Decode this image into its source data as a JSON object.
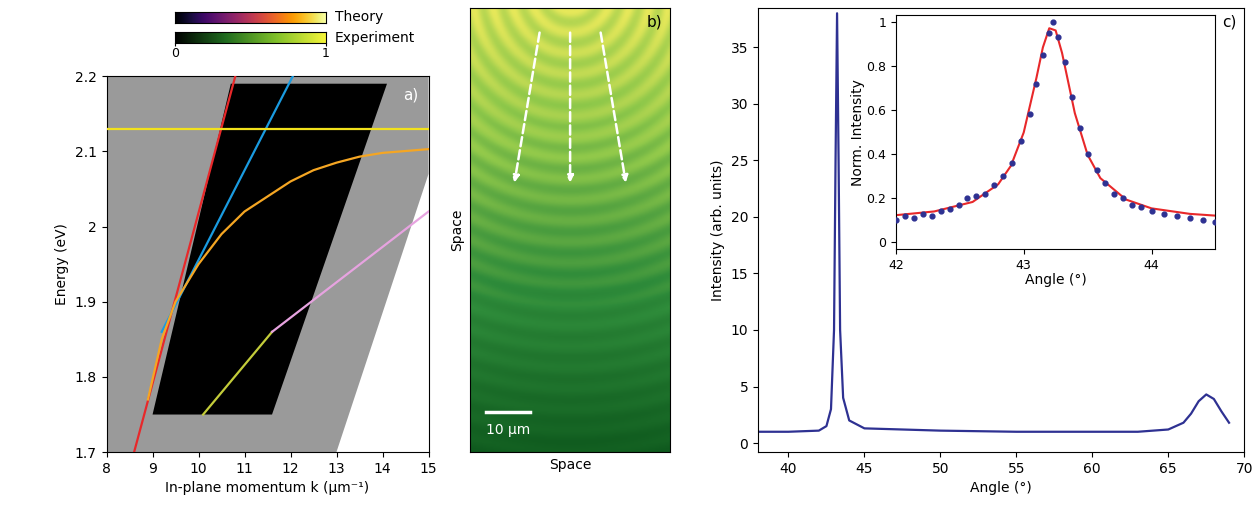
{
  "chart_data": [
    {
      "type": "line",
      "panel_label": "a)",
      "x_label": "In-plane momentum k (μm⁻¹)",
      "y_label": "Energy (eV)",
      "xlim": [
        8,
        15
      ],
      "xticks": [
        8,
        9,
        10,
        11,
        12,
        13,
        14,
        15
      ],
      "ylim": [
        1.7,
        2.2
      ],
      "yticks": [
        1.7,
        1.8,
        1.9,
        2,
        2.1,
        2.2
      ],
      "colorbar": {
        "labels": [
          "Theory",
          "Experiment"
        ],
        "range": [
          0,
          1
        ],
        "ticks": [
          0,
          1
        ]
      },
      "series": [
        {
          "color": "#e8282a",
          "x": [
            8.6,
            10.8
          ],
          "values": [
            1.7,
            2.2
          ]
        },
        {
          "color": "#1a9be0",
          "x": [
            9.2,
            12.05
          ],
          "values": [
            1.86,
            2.2
          ]
        },
        {
          "color": "#f5a623",
          "x": [
            8.9,
            9.2,
            9.5,
            10,
            10.5,
            11,
            11.5,
            12,
            12.5,
            13,
            13.5,
            14,
            15
          ],
          "values": [
            1.77,
            1.85,
            1.9,
            1.95,
            1.99,
            2.02,
            2.04,
            2.06,
            2.075,
            2.085,
            2.093,
            2.098,
            2.103
          ]
        },
        {
          "color": "#f2e21c",
          "x": [
            8,
            15
          ],
          "values": [
            2.13,
            2.13
          ]
        },
        {
          "color": "#c3cc3a",
          "x": [
            10.1,
            11.6
          ],
          "values": [
            1.75,
            1.86
          ]
        },
        {
          "color": "#e7a3e0",
          "x": [
            11.6,
            15
          ],
          "values": [
            1.86,
            2.02
          ]
        }
      ]
    },
    {
      "type": "image",
      "panel_label": "b)",
      "x_label": "Space",
      "y_label": "Space",
      "annotations": [
        "10 μm"
      ],
      "tick_labels": false
    },
    {
      "type": "line",
      "panel_label": "c)",
      "x_label": "Angle (°)",
      "y_label": "Intensity (arb. units)",
      "xlim": [
        38,
        70
      ],
      "xticks": [
        40,
        45,
        50,
        55,
        60,
        65,
        70
      ],
      "ylim": [
        -0.8,
        38.5
      ],
      "yticks": [
        0,
        5,
        10,
        15,
        20,
        25,
        30,
        35
      ],
      "color": "#2e3192",
      "x": [
        38,
        40,
        42,
        42.5,
        42.8,
        43.0,
        43.1,
        43.2,
        43.3,
        43.4,
        43.6,
        44,
        45,
        50,
        55,
        60,
        63,
        65,
        66,
        66.5,
        67,
        67.5,
        68,
        68.5,
        69
      ],
      "values": [
        1.0,
        1.0,
        1.1,
        1.5,
        3,
        10,
        25,
        38,
        25,
        10,
        4,
        2,
        1.3,
        1.1,
        1.0,
        1.0,
        1.0,
        1.2,
        1.8,
        2.6,
        3.7,
        4.3,
        3.9,
        2.8,
        1.8
      ],
      "inset": {
        "type": "scatter",
        "x_label": "Angle (°)",
        "y_label": "Norm. Intensity",
        "xlim": [
          42,
          44.5
        ],
        "xticks": [
          42,
          43,
          44
        ],
        "ylim": [
          -0.03,
          1.03
        ],
        "yticks": [
          0,
          0.2,
          0.4,
          0.6,
          0.8,
          1
        ],
        "series": [
          {
            "type": "scatter",
            "color": "#2e3192",
            "marker": "o",
            "x": [
              42.0,
              42.07,
              42.14,
              42.21,
              42.28,
              42.35,
              42.42,
              42.49,
              42.56,
              42.63,
              42.7,
              42.77,
              42.84,
              42.91,
              42.98,
              43.05,
              43.1,
              43.15,
              43.2,
              43.23,
              43.27,
              43.32,
              43.38,
              43.44,
              43.5,
              43.57,
              43.64,
              43.71,
              43.78,
              43.85,
              43.92,
              44.0,
              44.1,
              44.2,
              44.3,
              44.4,
              44.5
            ],
            "values": [
              0.1,
              0.12,
              0.11,
              0.13,
              0.12,
              0.14,
              0.15,
              0.17,
              0.2,
              0.21,
              0.22,
              0.26,
              0.3,
              0.36,
              0.46,
              0.58,
              0.72,
              0.85,
              0.95,
              1.0,
              0.93,
              0.82,
              0.66,
              0.52,
              0.4,
              0.33,
              0.27,
              0.22,
              0.2,
              0.17,
              0.16,
              0.14,
              0.13,
              0.12,
              0.11,
              0.1,
              0.09
            ]
          },
          {
            "type": "line",
            "color": "#e8282a",
            "x": [
              42.0,
              42.3,
              42.6,
              42.8,
              42.9,
              43.0,
              43.1,
              43.15,
              43.2,
              43.25,
              43.3,
              43.4,
              43.5,
              43.6,
              43.8,
              44.0,
              44.3,
              44.5
            ],
            "values": [
              0.123,
              0.14,
              0.183,
              0.263,
              0.347,
              0.498,
              0.747,
              0.884,
              0.971,
              0.961,
              0.859,
              0.586,
              0.397,
              0.291,
              0.194,
              0.154,
              0.129,
              0.121
            ]
          }
        ]
      }
    }
  ]
}
